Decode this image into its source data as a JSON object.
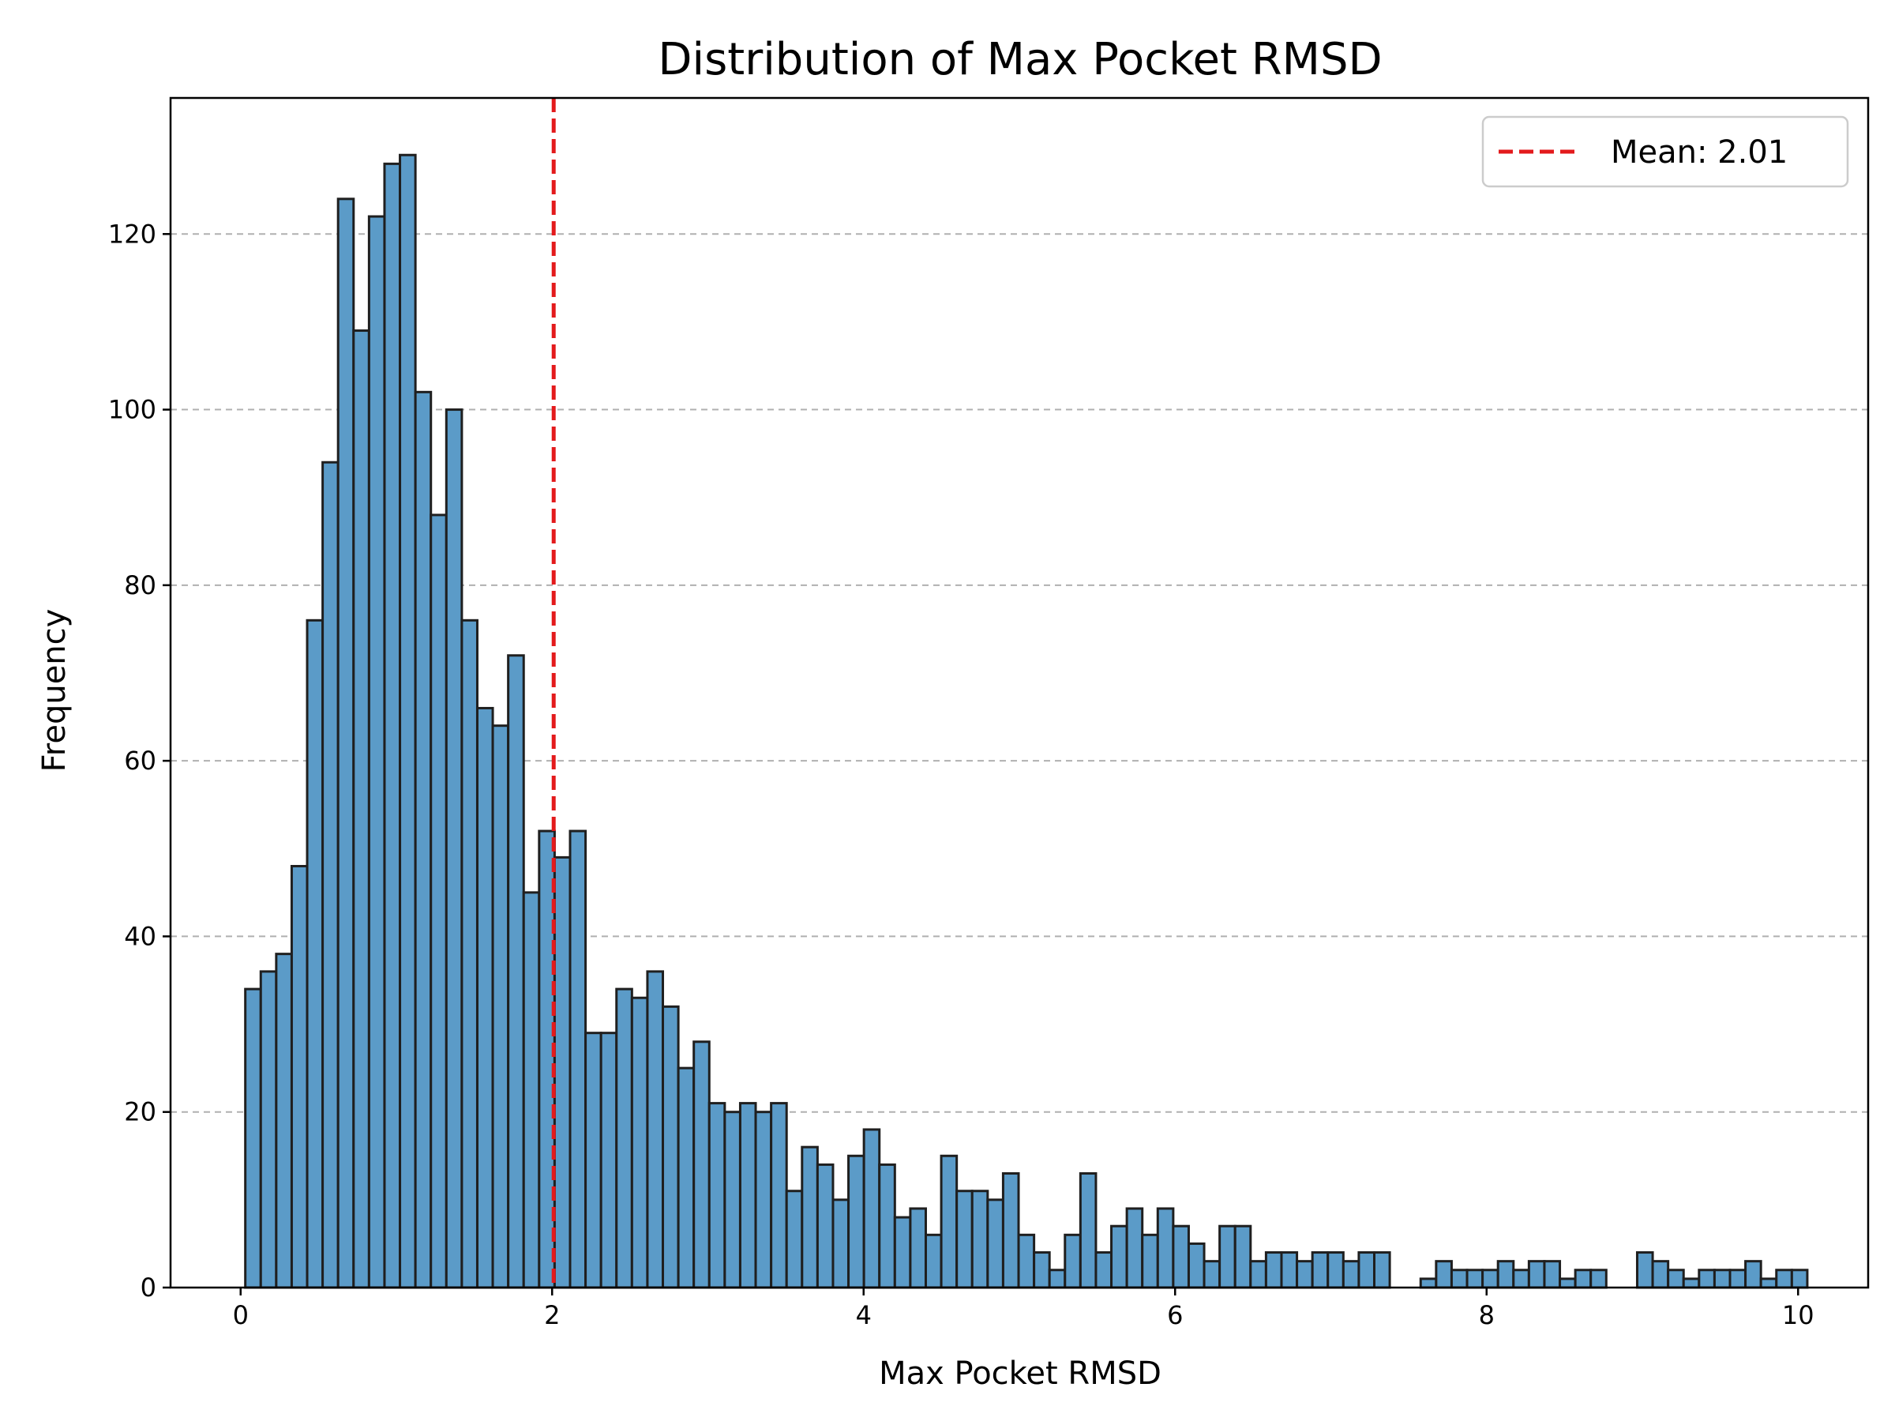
{
  "chart_data": {
    "type": "bar",
    "title": "Distribution of Max Pocket RMSD",
    "xlabel": "Max Pocket RMSD",
    "ylabel": "Frequency",
    "xlim": [
      -0.45,
      10.45
    ],
    "ylim": [
      0,
      135.5
    ],
    "xticks": [
      0,
      2,
      4,
      6,
      8,
      10
    ],
    "yticks": [
      0,
      20,
      40,
      60,
      80,
      100,
      120
    ],
    "grid": "y-dashed",
    "legend_position": "top-right",
    "bin_start": 0.03,
    "bin_width": 0.0993,
    "bar_color": "#5b9bc8",
    "edge_color": "#1f1f1f",
    "counts": [
      34,
      36,
      38,
      48,
      76,
      94,
      124,
      109,
      122,
      128,
      129,
      102,
      88,
      100,
      76,
      66,
      64,
      72,
      45,
      52,
      49,
      52,
      29,
      29,
      34,
      33,
      36,
      32,
      25,
      28,
      21,
      20,
      21,
      20,
      21,
      11,
      16,
      14,
      10,
      15,
      18,
      14,
      8,
      9,
      6,
      15,
      11,
      11,
      10,
      13,
      6,
      4,
      2,
      6,
      13,
      4,
      7,
      9,
      6,
      9,
      7,
      5,
      3,
      7,
      7,
      3,
      4,
      4,
      3,
      4,
      4,
      3,
      4,
      4,
      0,
      0,
      1,
      3,
      2,
      2,
      2,
      3,
      2,
      3,
      3,
      1,
      2,
      2,
      0,
      0,
      4,
      3,
      2,
      1,
      2,
      2,
      2,
      3,
      1,
      2,
      2
    ],
    "mean_line": {
      "x": 2.01,
      "label": "Mean: 2.01",
      "color": "#e31a1c"
    }
  }
}
